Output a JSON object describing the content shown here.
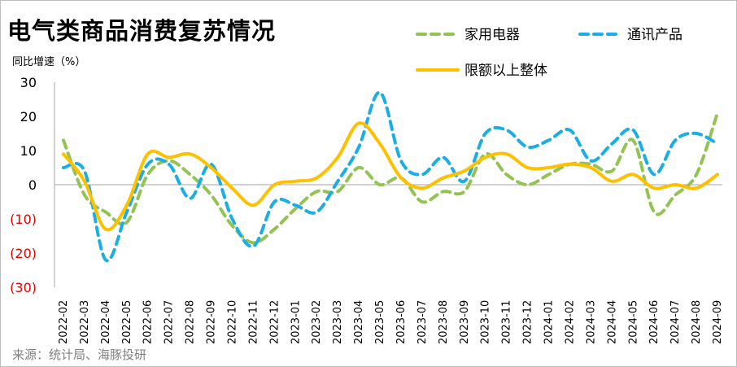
{
  "title": "电气类商品消费复苏情况",
  "source": "来源：统计局、海豚投研",
  "chart_data": {
    "type": "line",
    "title": "电气类商品消费复苏情况",
    "ylabel": "同比增速（%）",
    "xlabel": "",
    "ylim": [
      -30,
      30
    ],
    "yticks": [
      30,
      20,
      10,
      0,
      -10,
      -20,
      -30
    ],
    "ytick_labels": [
      "30",
      "20",
      "10",
      "0",
      "(10)",
      "(20)",
      "(30)"
    ],
    "negative_tick_color": "#e00000",
    "grid": false,
    "legend_position": "top-right",
    "x": [
      "2022-02",
      "2022-03",
      "2022-04",
      "2022-05",
      "2022-06",
      "2022-07",
      "2022-08",
      "2022-09",
      "2022-10",
      "2022-11",
      "2022-12",
      "2023-01",
      "2023-02",
      "2023-03",
      "2023-04",
      "2023-05",
      "2023-06",
      "2023-07",
      "2023-08",
      "2023-09",
      "2023-10",
      "2023-11",
      "2023-12",
      "2024-01",
      "2024-02",
      "2024-03",
      "2024-04",
      "2024-05",
      "2024-06",
      "2024-07",
      "2024-08",
      "2024-09"
    ],
    "series": [
      {
        "name": "家用电器",
        "color": "#92c353",
        "style": "dashed",
        "values": [
          13,
          -3,
          -8,
          -11,
          3,
          7,
          3,
          -3,
          -12,
          -17,
          -13,
          -7,
          -2,
          -2,
          5,
          0,
          2,
          -5,
          -2,
          -2,
          9,
          3,
          0,
          3,
          6,
          6,
          4,
          13,
          -8,
          -3,
          3,
          21
        ]
      },
      {
        "name": "通讯产品",
        "color": "#1aaee5",
        "style": "dashed",
        "values": [
          5,
          4,
          -22,
          -8,
          6,
          6,
          -4,
          6,
          -10,
          -18,
          -5,
          -6,
          -8,
          1,
          11,
          27,
          7,
          3,
          8,
          1,
          15,
          16,
          11,
          13,
          16,
          7,
          12,
          16,
          3,
          13,
          15,
          12
        ]
      },
      {
        "name": "限额以上整体",
        "color": "#ffc000",
        "style": "solid",
        "values": [
          9,
          1,
          -13,
          -6,
          9,
          8,
          9,
          5,
          -1,
          -6,
          0,
          1,
          2,
          8,
          18,
          12,
          2,
          -1,
          2,
          4,
          8,
          9,
          5,
          5,
          6,
          5,
          1,
          3,
          -1,
          0,
          -1,
          3
        ]
      }
    ]
  }
}
